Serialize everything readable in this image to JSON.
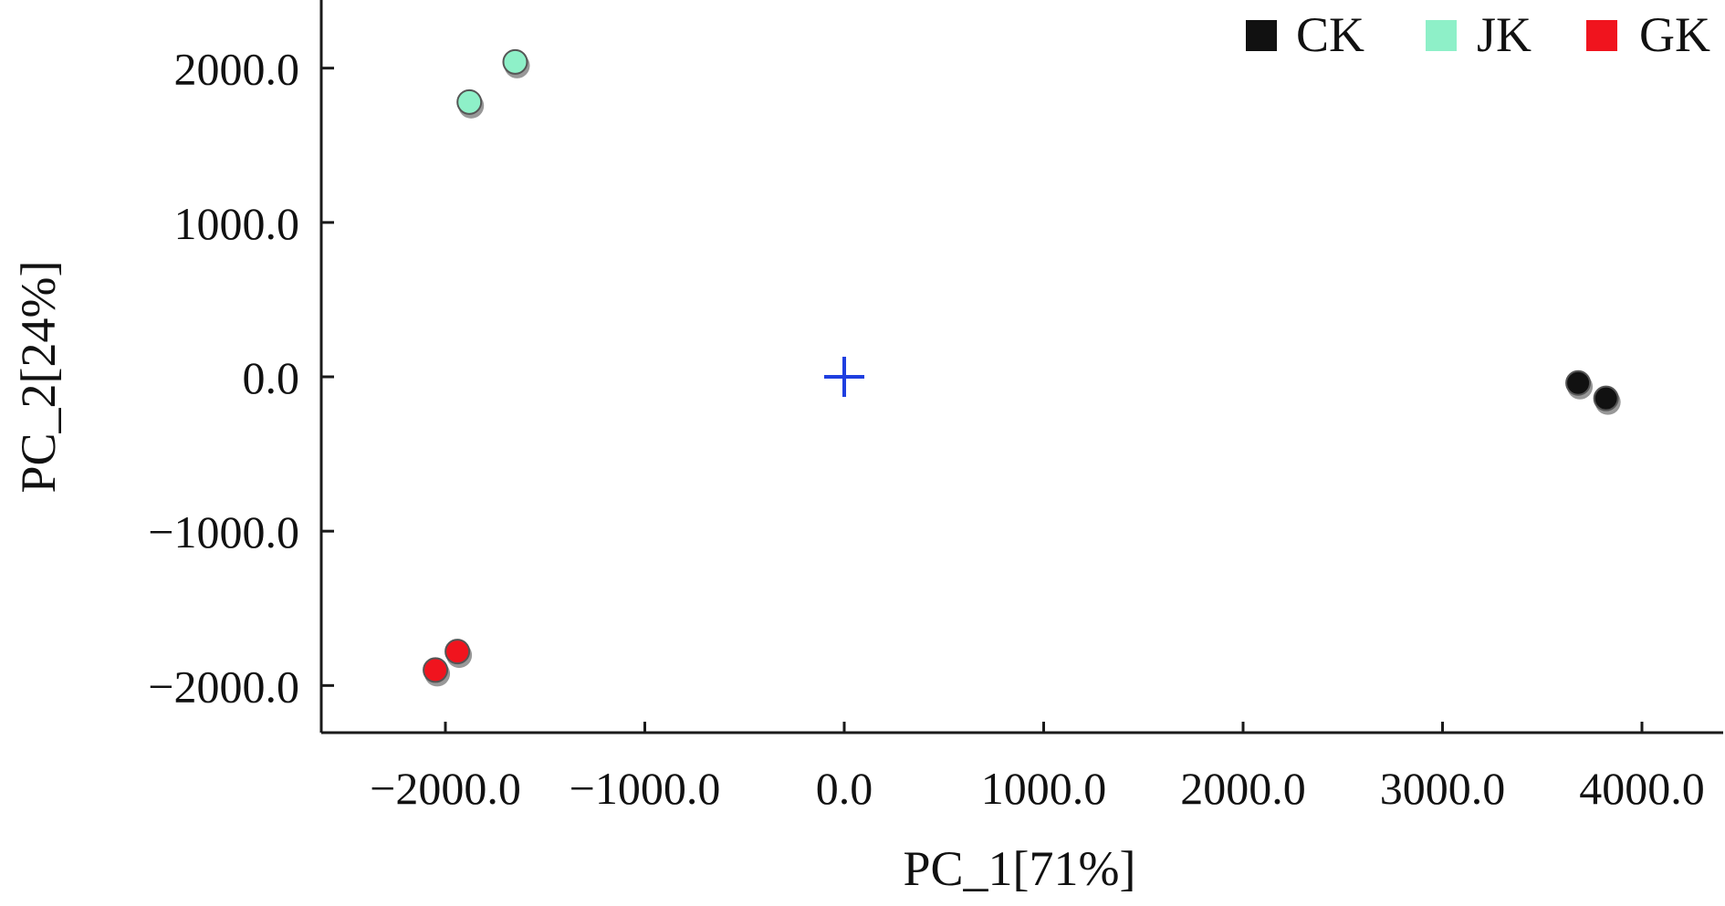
{
  "colors": {
    "axis": "#1a1a1a",
    "origin_marker": "#1f3fe0",
    "point_outline": "#555555"
  },
  "chart_data": {
    "type": "scatter",
    "title": "",
    "xlabel": "PC_1[71%]",
    "ylabel": "PC_2[24%]",
    "xlim": [
      -2600,
      4400
    ],
    "ylim": [
      -2300,
      2400
    ],
    "x_ticks": [
      -2000,
      -1000,
      0,
      1000,
      2000,
      3000,
      4000
    ],
    "x_tick_labels": [
      "−2000.0",
      "−1000.0",
      "0.0",
      "1000.0",
      "2000.0",
      "3000.0",
      "4000.0"
    ],
    "y_ticks": [
      -2000,
      -1000,
      0,
      1000,
      2000
    ],
    "y_tick_labels": [
      "−2000.0",
      "−1000.0",
      "0.0",
      "1000.0",
      "2000.0"
    ],
    "grid": false,
    "legend_position": "top-right",
    "origin_marker": "cross",
    "series": [
      {
        "name": "CK",
        "color": "#111111",
        "points": [
          {
            "x": 3680,
            "y": -40
          },
          {
            "x": 3820,
            "y": -140
          }
        ]
      },
      {
        "name": "JK",
        "color": "#8ef0c8",
        "points": [
          {
            "x": -1880,
            "y": 1780
          },
          {
            "x": -1650,
            "y": 2040
          }
        ]
      },
      {
        "name": "GK",
        "color": "#f0141e",
        "points": [
          {
            "x": -2050,
            "y": -1900
          },
          {
            "x": -1940,
            "y": -1780
          }
        ]
      }
    ]
  }
}
